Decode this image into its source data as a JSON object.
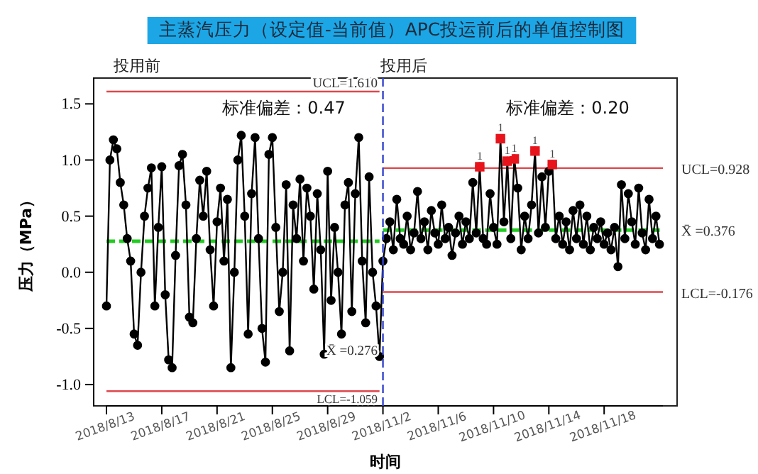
{
  "chart_data": {
    "type": "line",
    "title": "主蒸汽压力（设定值-当前值）APC投运前后的单值控制图",
    "xlabel": "时间",
    "ylabel": "压力（MPa）",
    "ylim": [
      -1.19,
      1.73
    ],
    "categories": [
      "2018/8/13",
      null,
      null,
      null,
      null,
      null,
      null,
      null,
      null,
      null,
      null,
      null,
      null,
      null,
      null,
      null,
      "2018/8/17",
      null,
      null,
      null,
      null,
      null,
      null,
      null,
      null,
      null,
      null,
      null,
      null,
      null,
      null,
      null,
      "2018/8/21",
      null,
      null,
      null,
      null,
      null,
      null,
      null,
      null,
      null,
      null,
      null,
      null,
      null,
      null,
      null,
      "2018/8/25",
      null,
      null,
      null,
      null,
      null,
      null,
      null,
      null,
      null,
      null,
      null,
      null,
      null,
      null,
      null,
      "2018/8/29",
      null,
      null,
      null,
      null,
      null,
      null,
      null,
      null,
      null,
      null,
      null,
      null,
      null,
      null,
      null,
      "2018/11/2",
      null,
      null,
      null,
      null,
      null,
      null,
      null,
      null,
      null,
      null,
      null,
      null,
      null,
      null,
      null,
      "2018/11/6",
      null,
      null,
      null,
      null,
      null,
      null,
      null,
      null,
      null,
      null,
      null,
      null,
      null,
      null,
      null,
      "2018/11/10",
      null,
      null,
      null,
      null,
      null,
      null,
      null,
      null,
      null,
      null,
      null,
      null,
      null,
      null,
      null,
      "2018/11/14",
      null,
      null,
      null,
      null,
      null,
      null,
      null,
      null,
      null,
      null,
      null,
      null,
      null,
      null,
      null,
      "2018/11/18",
      null,
      null,
      null,
      null,
      null,
      null,
      null,
      null,
      null,
      null,
      null,
      null,
      null,
      null,
      null,
      null,
      null
    ],
    "yticks": [
      {
        "value": -1,
        "label": "-1.0"
      },
      {
        "value": -0.5,
        "label": "-0.5"
      },
      {
        "value": 0,
        "label": "0.0"
      },
      {
        "value": 0.5,
        "label": "0.5"
      },
      {
        "value": 1,
        "label": "1.0"
      },
      {
        "value": 1.5,
        "label": "1.5"
      }
    ],
    "grid": false,
    "annotations": [
      "投用前",
      "投用后",
      "标准偏差：0.47",
      "标准偏差：0.20",
      "UCL=1.610",
      "LCL=-1.059",
      "X̄ =0.276",
      "UCL=0.928",
      "X̄ =0.376",
      "LCL=-0.176"
    ],
    "ref_lines": [
      {
        "axis": "x",
        "value": "2018/11/2",
        "color": "#3344cc",
        "line_style": "dashed"
      }
    ],
    "series": [
      {
        "color": "#e0474c",
        "marker": "none",
        "line_style": "solid",
        "values": [
          1.61,
          1.61,
          1.61,
          1.61,
          1.61,
          1.61,
          1.61,
          1.61,
          1.61,
          1.61,
          1.61,
          1.61,
          1.61,
          1.61,
          1.61,
          1.61,
          1.61,
          1.61,
          1.61,
          1.61,
          1.61,
          1.61,
          1.61,
          1.61,
          1.61,
          1.61,
          1.61,
          1.61,
          1.61,
          1.61,
          1.61,
          1.61,
          1.61,
          1.61,
          1.61,
          1.61,
          1.61,
          1.61,
          1.61,
          1.61,
          1.61,
          1.61,
          1.61,
          1.61,
          1.61,
          1.61,
          1.61,
          1.61,
          1.61,
          1.61,
          1.61,
          1.61,
          1.61,
          1.61,
          1.61,
          1.61,
          1.61,
          1.61,
          1.61,
          1.61,
          1.61,
          1.61,
          1.61,
          1.61,
          1.61,
          1.61,
          1.61,
          1.61,
          1.61,
          1.61,
          1.61,
          1.61,
          1.61,
          1.61,
          1.61,
          1.61,
          1.61,
          1.61,
          1.61,
          1.61,
          null,
          null,
          null,
          null,
          null,
          null,
          null,
          null,
          null,
          null,
          null,
          null,
          null,
          null,
          null,
          null,
          null,
          null,
          null,
          null,
          null,
          null,
          null,
          null,
          null,
          null,
          null,
          null,
          null,
          null,
          null,
          null,
          null,
          null,
          null,
          null,
          null,
          null,
          null,
          null,
          null,
          null,
          null,
          null,
          null,
          null,
          null,
          null,
          null,
          null,
          null,
          null,
          null,
          null,
          null,
          null,
          null,
          null,
          null,
          null,
          null,
          null,
          null,
          null,
          null,
          null,
          null,
          null,
          null,
          null,
          null,
          null,
          null,
          null,
          null,
          null,
          null,
          null,
          null,
          null,
          null,
          null
        ]
      },
      {
        "color": "#e0474c",
        "marker": "none",
        "line_style": "solid",
        "values": [
          -1.059,
          -1.059,
          -1.059,
          -1.059,
          -1.059,
          -1.059,
          -1.059,
          -1.059,
          -1.059,
          -1.059,
          -1.059,
          -1.059,
          -1.059,
          -1.059,
          -1.059,
          -1.059,
          -1.059,
          -1.059,
          -1.059,
          -1.059,
          -1.059,
          -1.059,
          -1.059,
          -1.059,
          -1.059,
          -1.059,
          -1.059,
          -1.059,
          -1.059,
          -1.059,
          -1.059,
          -1.059,
          -1.059,
          -1.059,
          -1.059,
          -1.059,
          -1.059,
          -1.059,
          -1.059,
          -1.059,
          -1.059,
          -1.059,
          -1.059,
          -1.059,
          -1.059,
          -1.059,
          -1.059,
          -1.059,
          -1.059,
          -1.059,
          -1.059,
          -1.059,
          -1.059,
          -1.059,
          -1.059,
          -1.059,
          -1.059,
          -1.059,
          -1.059,
          -1.059,
          -1.059,
          -1.059,
          -1.059,
          -1.059,
          -1.059,
          -1.059,
          -1.059,
          -1.059,
          -1.059,
          -1.059,
          -1.059,
          -1.059,
          -1.059,
          -1.059,
          -1.059,
          -1.059,
          -1.059,
          -1.059,
          -1.059,
          -1.059,
          null,
          null,
          null,
          null,
          null,
          null,
          null,
          null,
          null,
          null,
          null,
          null,
          null,
          null,
          null,
          null,
          null,
          null,
          null,
          null,
          null,
          null,
          null,
          null,
          null,
          null,
          null,
          null,
          null,
          null,
          null,
          null,
          null,
          null,
          null,
          null,
          null,
          null,
          null,
          null,
          null,
          null,
          null,
          null,
          null,
          null,
          null,
          null,
          null,
          null,
          null,
          null,
          null,
          null,
          null,
          null,
          null,
          null,
          null,
          null,
          null,
          null,
          null,
          null,
          null,
          null,
          null,
          null,
          null,
          null,
          null,
          null,
          null,
          null,
          null,
          null,
          null,
          null,
          null,
          null,
          null,
          null
        ]
      },
      {
        "color": "#22cc22",
        "marker": "none",
        "line_style": "dashed",
        "values": [
          0.276,
          0.276,
          0.276,
          0.276,
          0.276,
          0.276,
          0.276,
          0.276,
          0.276,
          0.276,
          0.276,
          0.276,
          0.276,
          0.276,
          0.276,
          0.276,
          0.276,
          0.276,
          0.276,
          0.276,
          0.276,
          0.276,
          0.276,
          0.276,
          0.276,
          0.276,
          0.276,
          0.276,
          0.276,
          0.276,
          0.276,
          0.276,
          0.276,
          0.276,
          0.276,
          0.276,
          0.276,
          0.276,
          0.276,
          0.276,
          0.276,
          0.276,
          0.276,
          0.276,
          0.276,
          0.276,
          0.276,
          0.276,
          0.276,
          0.276,
          0.276,
          0.276,
          0.276,
          0.276,
          0.276,
          0.276,
          0.276,
          0.276,
          0.276,
          0.276,
          0.276,
          0.276,
          0.276,
          0.276,
          0.276,
          0.276,
          0.276,
          0.276,
          0.276,
          0.276,
          0.276,
          0.276,
          0.276,
          0.276,
          0.276,
          0.276,
          0.276,
          0.276,
          0.276,
          0.276,
          null,
          null,
          null,
          null,
          null,
          null,
          null,
          null,
          null,
          null,
          null,
          null,
          null,
          null,
          null,
          null,
          null,
          null,
          null,
          null,
          null,
          null,
          null,
          null,
          null,
          null,
          null,
          null,
          null,
          null,
          null,
          null,
          null,
          null,
          null,
          null,
          null,
          null,
          null,
          null,
          null,
          null,
          null,
          null,
          null,
          null,
          null,
          null,
          null,
          null,
          null,
          null,
          null,
          null,
          null,
          null,
          null,
          null,
          null,
          null,
          null,
          null,
          null,
          null,
          null,
          null,
          null,
          null,
          null,
          null,
          null,
          null,
          null,
          null,
          null,
          null,
          null,
          null,
          null,
          null,
          null,
          null
        ]
      },
      {
        "color": "#e0474c",
        "marker": "none",
        "line_style": "solid",
        "values": [
          null,
          null,
          null,
          null,
          null,
          null,
          null,
          null,
          null,
          null,
          null,
          null,
          null,
          null,
          null,
          null,
          null,
          null,
          null,
          null,
          null,
          null,
          null,
          null,
          null,
          null,
          null,
          null,
          null,
          null,
          null,
          null,
          null,
          null,
          null,
          null,
          null,
          null,
          null,
          null,
          null,
          null,
          null,
          null,
          null,
          null,
          null,
          null,
          null,
          null,
          null,
          null,
          null,
          null,
          null,
          null,
          null,
          null,
          null,
          null,
          null,
          null,
          null,
          null,
          null,
          null,
          null,
          null,
          null,
          null,
          null,
          null,
          null,
          null,
          null,
          null,
          null,
          null,
          null,
          null,
          0.928,
          0.928,
          0.928,
          0.928,
          0.928,
          0.928,
          0.928,
          0.928,
          0.928,
          0.928,
          0.928,
          0.928,
          0.928,
          0.928,
          0.928,
          0.928,
          0.928,
          0.928,
          0.928,
          0.928,
          0.928,
          0.928,
          0.928,
          0.928,
          0.928,
          0.928,
          0.928,
          0.928,
          0.928,
          0.928,
          0.928,
          0.928,
          0.928,
          0.928,
          0.928,
          0.928,
          0.928,
          0.928,
          0.928,
          0.928,
          0.928,
          0.928,
          0.928,
          0.928,
          0.928,
          0.928,
          0.928,
          0.928,
          0.928,
          0.928,
          0.928,
          0.928,
          0.928,
          0.928,
          0.928,
          0.928,
          0.928,
          0.928,
          0.928,
          0.928,
          0.928,
          0.928,
          0.928,
          0.928,
          0.928,
          0.928,
          0.928,
          0.928,
          0.928,
          0.928,
          0.928,
          0.928,
          0.928,
          0.928,
          0.928,
          0.928,
          0.928,
          0.928,
          0.928,
          0.928,
          0.928,
          0.928
        ]
      },
      {
        "color": "#22cc22",
        "marker": "none",
        "line_style": "dashed",
        "values": [
          null,
          null,
          null,
          null,
          null,
          null,
          null,
          null,
          null,
          null,
          null,
          null,
          null,
          null,
          null,
          null,
          null,
          null,
          null,
          null,
          null,
          null,
          null,
          null,
          null,
          null,
          null,
          null,
          null,
          null,
          null,
          null,
          null,
          null,
          null,
          null,
          null,
          null,
          null,
          null,
          null,
          null,
          null,
          null,
          null,
          null,
          null,
          null,
          null,
          null,
          null,
          null,
          null,
          null,
          null,
          null,
          null,
          null,
          null,
          null,
          null,
          null,
          null,
          null,
          null,
          null,
          null,
          null,
          null,
          null,
          null,
          null,
          null,
          null,
          null,
          null,
          null,
          null,
          null,
          null,
          0.376,
          0.376,
          0.376,
          0.376,
          0.376,
          0.376,
          0.376,
          0.376,
          0.376,
          0.376,
          0.376,
          0.376,
          0.376,
          0.376,
          0.376,
          0.376,
          0.376,
          0.376,
          0.376,
          0.376,
          0.376,
          0.376,
          0.376,
          0.376,
          0.376,
          0.376,
          0.376,
          0.376,
          0.376,
          0.376,
          0.376,
          0.376,
          0.376,
          0.376,
          0.376,
          0.376,
          0.376,
          0.376,
          0.376,
          0.376,
          0.376,
          0.376,
          0.376,
          0.376,
          0.376,
          0.376,
          0.376,
          0.376,
          0.376,
          0.376,
          0.376,
          0.376,
          0.376,
          0.376,
          0.376,
          0.376,
          0.376,
          0.376,
          0.376,
          0.376,
          0.376,
          0.376,
          0.376,
          0.376,
          0.376,
          0.376,
          0.376,
          0.376,
          0.376,
          0.376,
          0.376,
          0.376,
          0.376,
          0.376,
          0.376,
          0.376,
          0.376,
          0.376,
          0.376,
          0.376,
          0.376,
          0.376
        ]
      },
      {
        "color": "#e0474c",
        "marker": "none",
        "line_style": "solid",
        "values": [
          null,
          null,
          null,
          null,
          null,
          null,
          null,
          null,
          null,
          null,
          null,
          null,
          null,
          null,
          null,
          null,
          null,
          null,
          null,
          null,
          null,
          null,
          null,
          null,
          null,
          null,
          null,
          null,
          null,
          null,
          null,
          null,
          null,
          null,
          null,
          null,
          null,
          null,
          null,
          null,
          null,
          null,
          null,
          null,
          null,
          null,
          null,
          null,
          null,
          null,
          null,
          null,
          null,
          null,
          null,
          null,
          null,
          null,
          null,
          null,
          null,
          null,
          null,
          null,
          null,
          null,
          null,
          null,
          null,
          null,
          null,
          null,
          null,
          null,
          null,
          null,
          null,
          null,
          null,
          null,
          -0.176,
          -0.176,
          -0.176,
          -0.176,
          -0.176,
          -0.176,
          -0.176,
          -0.176,
          -0.176,
          -0.176,
          -0.176,
          -0.176,
          -0.176,
          -0.176,
          -0.176,
          -0.176,
          -0.176,
          -0.176,
          -0.176,
          -0.176,
          -0.176,
          -0.176,
          -0.176,
          -0.176,
          -0.176,
          -0.176,
          -0.176,
          -0.176,
          -0.176,
          -0.176,
          -0.176,
          -0.176,
          -0.176,
          -0.176,
          -0.176,
          -0.176,
          -0.176,
          -0.176,
          -0.176,
          -0.176,
          -0.176,
          -0.176,
          -0.176,
          -0.176,
          -0.176,
          -0.176,
          -0.176,
          -0.176,
          -0.176,
          -0.176,
          -0.176,
          -0.176,
          -0.176,
          -0.176,
          -0.176,
          -0.176,
          -0.176,
          -0.176,
          -0.176,
          -0.176,
          -0.176,
          -0.176,
          -0.176,
          -0.176,
          -0.176,
          -0.176,
          -0.176,
          -0.176,
          -0.176,
          -0.176,
          -0.176,
          -0.176,
          -0.176,
          -0.176,
          -0.176,
          -0.176,
          -0.176,
          -0.176,
          -0.176,
          -0.176,
          -0.176,
          -0.176
        ]
      },
      {
        "color": "#000000",
        "marker": "circle",
        "line_style": "solid",
        "values": [
          -0.3,
          1.0,
          1.18,
          1.1,
          0.8,
          0.6,
          0.3,
          0.1,
          -0.55,
          -0.65,
          0.0,
          0.5,
          0.75,
          0.93,
          -0.3,
          0.4,
          0.94,
          -0.2,
          -0.78,
          -0.85,
          0.15,
          0.95,
          1.05,
          0.6,
          -0.4,
          -0.45,
          0.3,
          0.82,
          0.5,
          0.9,
          0.2,
          -0.3,
          0.45,
          0.75,
          0.1,
          0.65,
          -0.85,
          0.0,
          1.0,
          1.22,
          0.5,
          -0.55,
          0.7,
          1.2,
          0.3,
          -0.5,
          -0.8,
          1.05,
          1.2,
          0.4,
          -0.35,
          0.0,
          0.78,
          -0.7,
          0.6,
          0.3,
          0.83,
          0.1,
          0.75,
          0.5,
          -0.15,
          0.7,
          0.2,
          -0.73,
          0.9,
          -0.25,
          0.4,
          0.0,
          -0.55,
          0.6,
          0.8,
          -0.35,
          0.7,
          1.2,
          0.1,
          -0.45,
          0.85,
          0.0,
          -0.3,
          -0.75,
          0.1,
          0.3,
          0.45,
          0.2,
          0.65,
          0.3,
          0.25,
          0.5,
          0.2,
          0.35,
          0.72,
          0.3,
          0.45,
          0.2,
          0.55,
          0.35,
          0.25,
          0.6,
          0.3,
          0.4,
          0.15,
          0.35,
          0.5,
          0.25,
          0.45,
          0.3,
          0.8,
          0.35,
          0.94,
          0.3,
          0.25,
          0.7,
          0.4,
          0.25,
          1.19,
          0.45,
          0.99,
          0.3,
          1.01,
          0.75,
          0.2,
          0.5,
          0.3,
          0.6,
          1.08,
          0.35,
          0.85,
          0.4,
          0.9,
          0.96,
          0.3,
          0.5,
          0.25,
          0.45,
          0.2,
          0.55,
          0.3,
          0.6,
          0.25,
          0.5,
          0.2,
          0.4,
          0.3,
          0.45,
          0.25,
          0.35,
          0.2,
          0.4,
          0.05,
          0.78,
          0.3,
          0.7,
          0.45,
          0.25,
          0.75,
          0.35,
          0.2,
          0.65,
          0.3,
          0.5,
          0.25,
          null
        ]
      },
      {
        "type": "scatter",
        "color": "#e8141c",
        "marker": "square",
        "values": [
          null,
          null,
          null,
          null,
          null,
          null,
          null,
          null,
          null,
          null,
          null,
          null,
          null,
          null,
          null,
          null,
          null,
          null,
          null,
          null,
          null,
          null,
          null,
          null,
          null,
          null,
          null,
          null,
          null,
          null,
          null,
          null,
          null,
          null,
          null,
          null,
          null,
          null,
          null,
          null,
          null,
          null,
          null,
          null,
          null,
          null,
          null,
          null,
          null,
          null,
          null,
          null,
          null,
          null,
          null,
          null,
          null,
          null,
          null,
          null,
          null,
          null,
          null,
          null,
          null,
          null,
          null,
          null,
          null,
          null,
          null,
          null,
          null,
          null,
          null,
          null,
          null,
          null,
          null,
          null,
          null,
          null,
          null,
          null,
          null,
          null,
          null,
          null,
          null,
          null,
          null,
          null,
          null,
          null,
          null,
          null,
          null,
          null,
          null,
          null,
          null,
          null,
          null,
          null,
          null,
          null,
          null,
          null,
          0.94,
          null,
          null,
          null,
          null,
          null,
          1.19,
          null,
          0.99,
          null,
          1.01,
          null,
          null,
          null,
          null,
          null,
          1.08,
          null,
          null,
          null,
          null,
          0.96,
          null,
          null,
          null,
          null,
          null,
          null,
          null,
          null,
          null,
          null,
          null,
          null,
          null,
          null,
          null,
          null,
          null,
          null,
          null,
          null,
          null,
          null,
          null,
          null,
          null,
          null,
          null,
          null,
          null,
          null,
          null,
          null
        ],
        "value_labels": [
          null,
          null,
          null,
          null,
          null,
          null,
          null,
          null,
          null,
          null,
          null,
          null,
          null,
          null,
          null,
          null,
          null,
          null,
          null,
          null,
          null,
          null,
          null,
          null,
          null,
          null,
          null,
          null,
          null,
          null,
          null,
          null,
          null,
          null,
          null,
          null,
          null,
          null,
          null,
          null,
          null,
          null,
          null,
          null,
          null,
          null,
          null,
          null,
          null,
          null,
          null,
          null,
          null,
          null,
          null,
          null,
          null,
          null,
          null,
          null,
          null,
          null,
          null,
          null,
          null,
          null,
          null,
          null,
          null,
          null,
          null,
          null,
          null,
          null,
          null,
          null,
          null,
          null,
          null,
          null,
          null,
          null,
          null,
          null,
          null,
          null,
          null,
          null,
          null,
          null,
          null,
          null,
          null,
          null,
          null,
          null,
          null,
          null,
          null,
          null,
          null,
          null,
          null,
          null,
          null,
          null,
          null,
          null,
          "1",
          null,
          null,
          null,
          null,
          null,
          "1",
          null,
          "1",
          null,
          "1",
          null,
          null,
          null,
          null,
          null,
          "1",
          null,
          null,
          null,
          null,
          "1",
          null,
          null,
          null,
          null,
          null,
          null,
          null,
          null,
          null,
          null,
          null,
          null,
          null,
          null,
          null,
          null,
          null,
          null,
          null,
          null,
          null,
          null,
          null,
          null,
          null,
          null,
          null,
          null,
          null,
          null,
          null,
          null
        ]
      }
    ]
  }
}
